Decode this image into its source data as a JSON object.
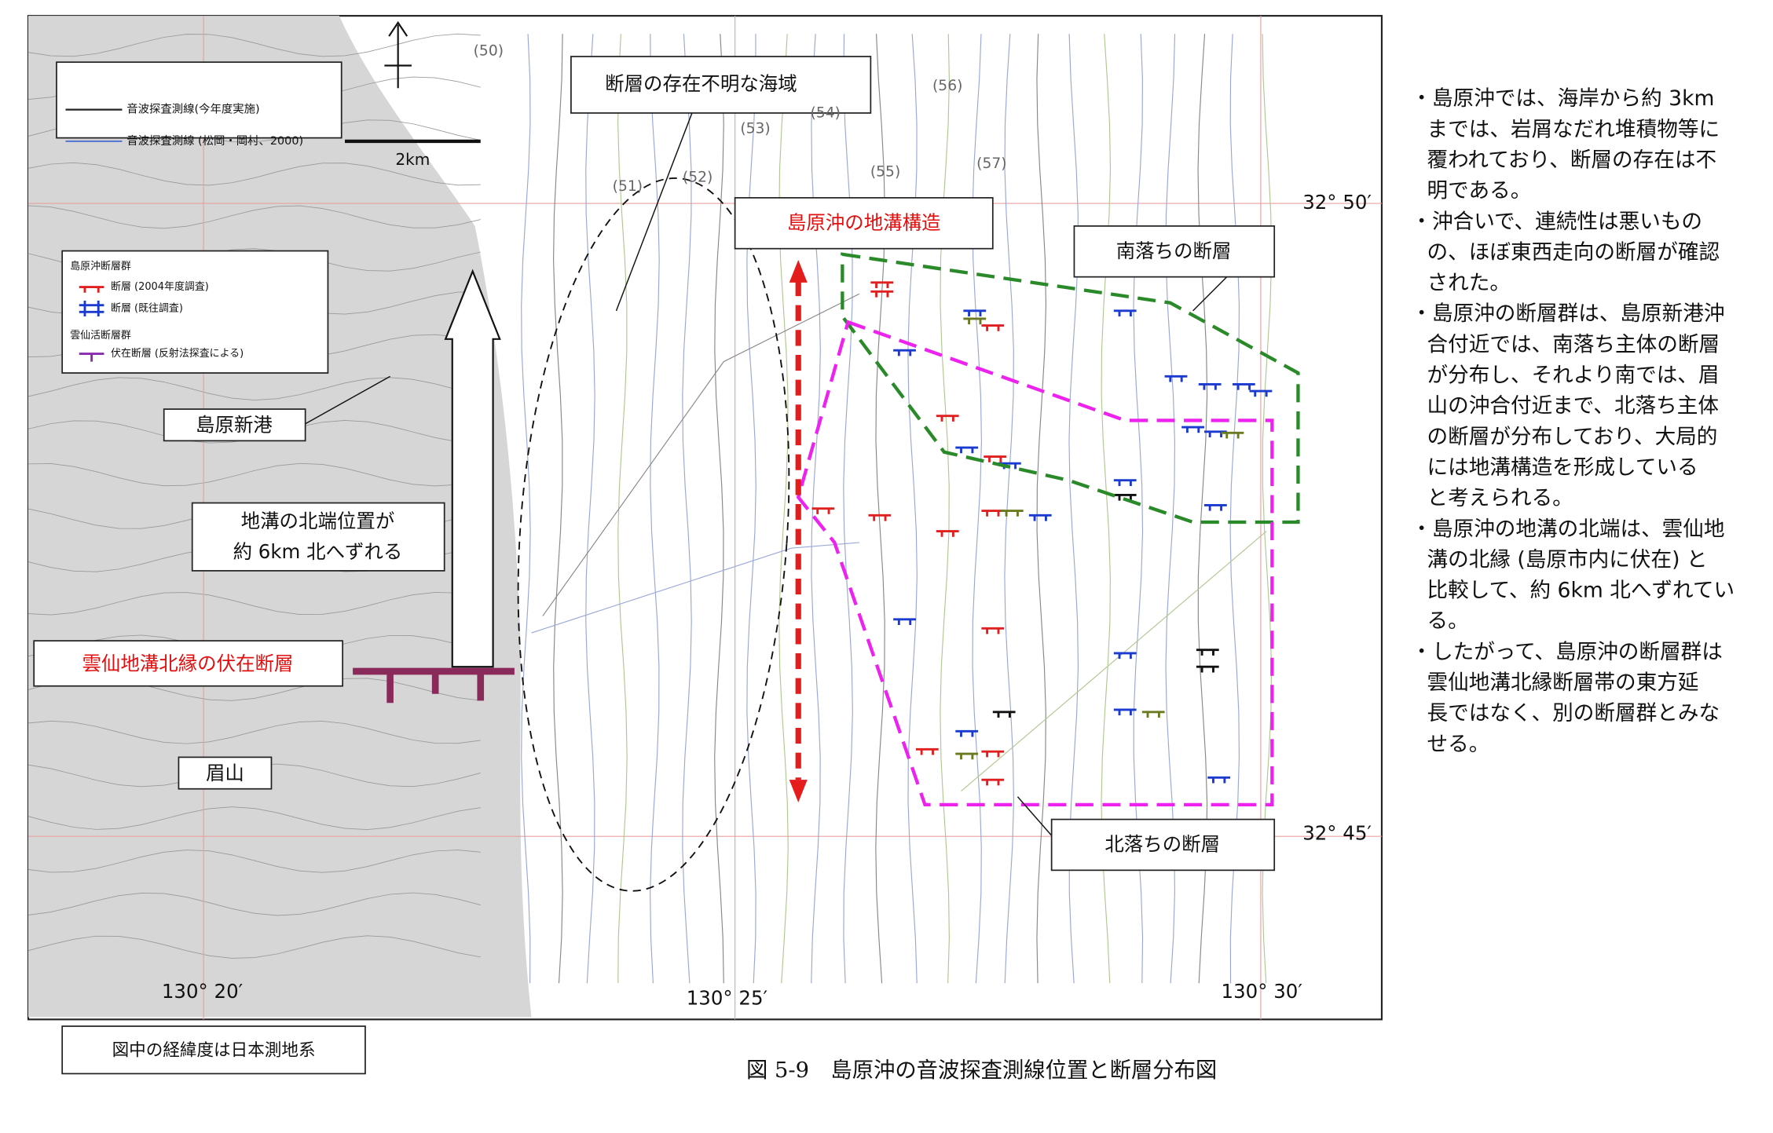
{
  "map": {
    "line_labels": [
      "(50)",
      "(51)",
      "(52)",
      "(53)",
      "(54)",
      "(55)",
      "(56)",
      "(57)"
    ],
    "legend": {
      "survey_this_year": "音波探査測線(今年度実施)",
      "survey_past": "音波探査測線 (松岡・岡村、2000)",
      "scale": "2km"
    },
    "fault_legend": {
      "group1": "島原沖断層群",
      "item1": "断層 (2004年度調査)",
      "item2": "断層 (既往調査)",
      "group2": "雲仙活断層群",
      "item3": "伏在断層 (反射法探査による)"
    },
    "callouts": {
      "unknown_area": "断層の存在不明な海域",
      "graben": "島原沖の地溝構造",
      "south_fault": "南落ちの断層",
      "north_fault": "北落ちの断層",
      "port": "島原新港",
      "shift": [
        "地溝の北端位置が",
        "約 6km 北へずれる"
      ],
      "buried_fault": "雲仙地溝北縁の伏在断層",
      "mayuyama": "眉山"
    },
    "coords": {
      "lat_north": "32° 50′",
      "lat_south": "32° 45′",
      "lon_west": "130° 20′",
      "lon_mid": "130° 25′",
      "lon_east": "130° 30′"
    }
  },
  "note": "図中の経緯度は日本測地系",
  "caption": "図 5-9　島原沖の音波探査測線位置と断層分布図",
  "bullets": [
    [
      "・島原沖では、海岸から約 3km",
      "までは、岩屑なだれ堆積物等に",
      "覆われており、断層の存在は不",
      "明である。"
    ],
    [
      "・沖合いで、連続性は悪いもの",
      "の、ほぼ東西走向の断層が確認",
      "された。"
    ],
    [
      "・島原沖の断層群は、島原新港沖",
      "合付近では、南落ち主体の断層",
      "が分布し、それより南では、眉",
      "山の沖合付近まで、北落ち主体",
      "の断層が分布しており、大局的",
      "には地溝構造を形成している",
      "と考えられる。"
    ],
    [
      "・島原沖の地溝の北端は、雲仙地",
      "溝の北縁 (島原市内に伏在) と",
      "比較して、約 6km 北へずれてい",
      "る。"
    ],
    [
      "・したがって、島原沖の断層群は",
      "雲仙地溝北縁断層帯の東方延",
      "長ではなく、別の断層群とみな",
      "せる。"
    ]
  ]
}
